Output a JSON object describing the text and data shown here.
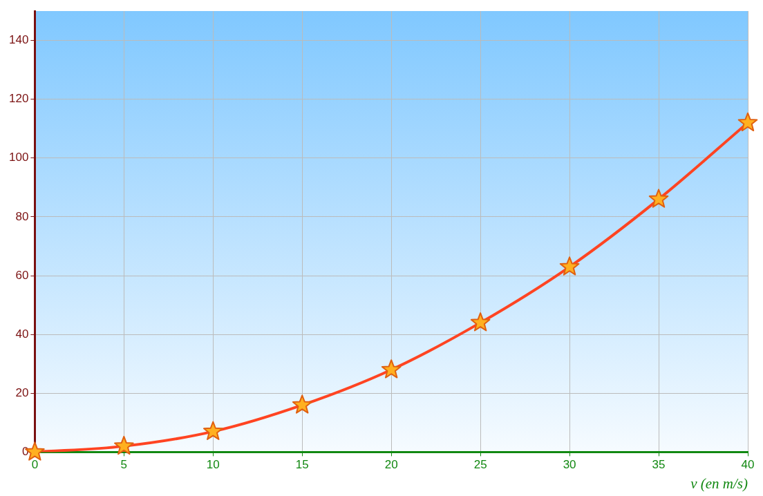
{
  "chart_data": {
    "type": "line",
    "xlabel": "v (en m/s)",
    "x": [
      0,
      5,
      10,
      15,
      20,
      25,
      30,
      35,
      40
    ],
    "series": [
      {
        "color": "#ff4422",
        "values": [
          0,
          2,
          7,
          16,
          28,
          44,
          63,
          86,
          112
        ]
      }
    ],
    "xlim": [
      0,
      40
    ],
    "xticks": [
      0,
      5,
      10,
      15,
      20,
      25,
      30,
      35,
      40
    ],
    "ylim": [
      0,
      150
    ],
    "yticks": [
      0,
      20,
      40,
      60,
      80,
      100,
      120,
      140
    ],
    "grid": true,
    "legend": false,
    "marker": "star",
    "line_style": "solid"
  }
}
